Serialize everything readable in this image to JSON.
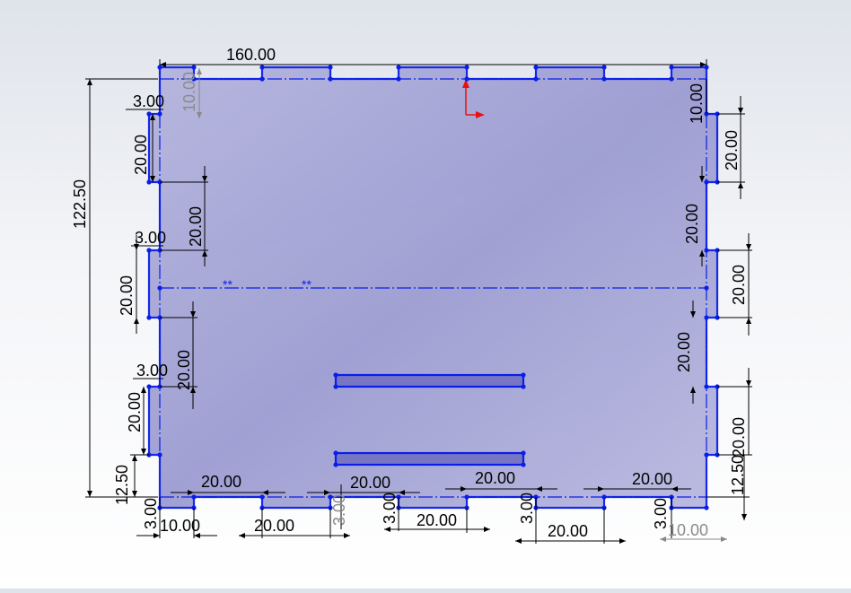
{
  "dimensions": {
    "top_width": "160.00",
    "height": "122.50",
    "top_left_tab_depth": "3.00",
    "top_left_notch_height": "10.00",
    "left_tab_1_height": "20.00",
    "left_gap_1": "20.00",
    "left_tab_2_depth": "3.00",
    "left_tab_2_height": "20.00",
    "left_gap_2": "20.00",
    "left_tab_3_depth": "3.00",
    "left_tab_3_height": "20.00",
    "left_bottom_offset": "12.50",
    "right_top_notch": "10.00",
    "right_tab_1_height": "20.00",
    "right_gap_1": "20.00",
    "right_tab_2_height": "20.00",
    "right_gap_2": "20.00",
    "right_tab_3_height": "20.00",
    "right_bottom_offset": "12.50",
    "bottom_depth_1": "3.00",
    "bottom_tab_1": "10.00",
    "bottom_gap_1": "20.00",
    "bottom_tab_2": "20.00",
    "bottom_depth_2": "3.00",
    "bottom_gap_2": "20.00",
    "bottom_depth_3": "3.00",
    "bottom_tab_3": "20.00",
    "bottom_gap_3": "20.00",
    "bottom_depth_4": "3.00",
    "bottom_tab_4": "20.00",
    "bottom_gap_4": "20.00",
    "bottom_depth_5": "3.00",
    "bottom_tab_5": "10.00"
  },
  "symmetry_marks": [
    "**",
    "**"
  ],
  "colors": {
    "sketch_line": "#0a1ee8",
    "panel_fill": "#a8a8d8",
    "origin_arrow": "#e81010",
    "dimension_line": "#000000",
    "driven_dimension": "#888888"
  }
}
